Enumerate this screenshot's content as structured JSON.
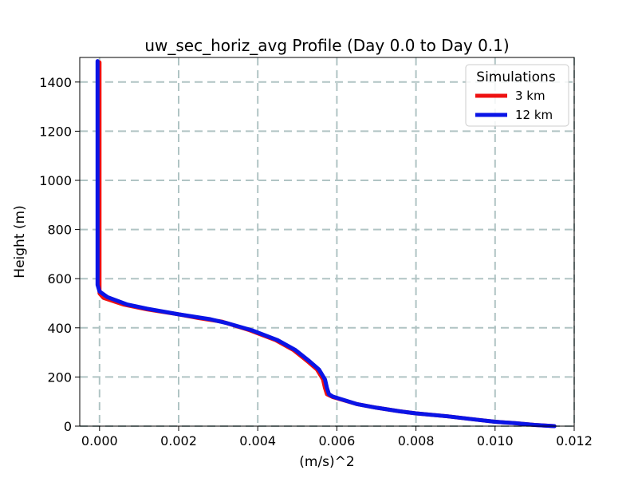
{
  "chart_data": {
    "type": "line",
    "title": "uw_sec_horiz_avg Profile (Day 0.0 to Day 0.1)",
    "xlabel": "(m/s)^2",
    "ylabel": "Height (m)",
    "xlim": [
      -0.0005,
      0.012
    ],
    "ylim": [
      0,
      1500
    ],
    "x_ticks": [
      0.0,
      0.002,
      0.004,
      0.006,
      0.008,
      0.01,
      0.012
    ],
    "x_tick_labels": [
      "0.000",
      "0.002",
      "0.004",
      "0.006",
      "0.008",
      "0.010",
      "0.012"
    ],
    "y_ticks": [
      0,
      200,
      400,
      600,
      800,
      1000,
      1200,
      1400
    ],
    "y_tick_labels": [
      "0",
      "200",
      "400",
      "600",
      "800",
      "1000",
      "1200",
      "1400"
    ],
    "grid": true,
    "legend": {
      "title": "Simulations",
      "position": "top-right"
    },
    "series": [
      {
        "name": "3 km",
        "color": "#ee1111",
        "points": [
          [
            0.0115,
            0
          ],
          [
            0.011,
            5
          ],
          [
            0.0105,
            12
          ],
          [
            0.01,
            18
          ],
          [
            0.0096,
            25
          ],
          [
            0.0088,
            40
          ],
          [
            0.008,
            52
          ],
          [
            0.0076,
            60
          ],
          [
            0.007,
            75
          ],
          [
            0.0065,
            90
          ],
          [
            0.0059,
            118
          ],
          [
            0.00575,
            130
          ],
          [
            0.0057,
            155
          ],
          [
            0.00565,
            190
          ],
          [
            0.0055,
            230
          ],
          [
            0.00525,
            265
          ],
          [
            0.0049,
            310
          ],
          [
            0.00445,
            350
          ],
          [
            0.0038,
            390
          ],
          [
            0.0031,
            425
          ],
          [
            0.0025,
            440
          ],
          [
            0.002,
            455
          ],
          [
            0.0012,
            475
          ],
          [
            0.0006,
            495
          ],
          [
            0.0001,
            522
          ],
          [
            0.0,
            540
          ],
          [
            0.0,
            560
          ],
          [
            0.0,
            600
          ],
          [
            0.0,
            700
          ],
          [
            0.0,
            800
          ],
          [
            0.0,
            900
          ],
          [
            0.0,
            1000
          ],
          [
            0.0,
            1100
          ],
          [
            0.0,
            1200
          ],
          [
            0.0,
            1300
          ],
          [
            0.0,
            1400
          ],
          [
            0.0,
            1480
          ]
        ]
      },
      {
        "name": "12 km",
        "color": "#0a14e6",
        "points": [
          [
            0.0115,
            0
          ],
          [
            0.011,
            5
          ],
          [
            0.0105,
            12
          ],
          [
            0.01,
            18
          ],
          [
            0.0096,
            25
          ],
          [
            0.0088,
            40
          ],
          [
            0.008,
            52
          ],
          [
            0.0076,
            60
          ],
          [
            0.007,
            75
          ],
          [
            0.0065,
            90
          ],
          [
            0.0059,
            120
          ],
          [
            0.0058,
            130
          ],
          [
            0.00575,
            155
          ],
          [
            0.0057,
            190
          ],
          [
            0.00555,
            230
          ],
          [
            0.0053,
            265
          ],
          [
            0.00495,
            310
          ],
          [
            0.0045,
            350
          ],
          [
            0.00385,
            390
          ],
          [
            0.0032,
            420
          ],
          [
            0.0028,
            435
          ],
          [
            0.002,
            455
          ],
          [
            0.0012,
            478
          ],
          [
            0.0007,
            495
          ],
          [
            0.0002,
            525
          ],
          [
            0.0,
            548
          ],
          [
            -5e-05,
            575
          ],
          [
            -5e-05,
            600
          ],
          [
            -5e-05,
            700
          ],
          [
            -5e-05,
            800
          ],
          [
            -5e-05,
            900
          ],
          [
            -5e-05,
            1000
          ],
          [
            -5e-05,
            1100
          ],
          [
            -5e-05,
            1200
          ],
          [
            -5e-05,
            1300
          ],
          [
            -5e-05,
            1400
          ],
          [
            -5e-05,
            1485
          ]
        ]
      }
    ]
  }
}
